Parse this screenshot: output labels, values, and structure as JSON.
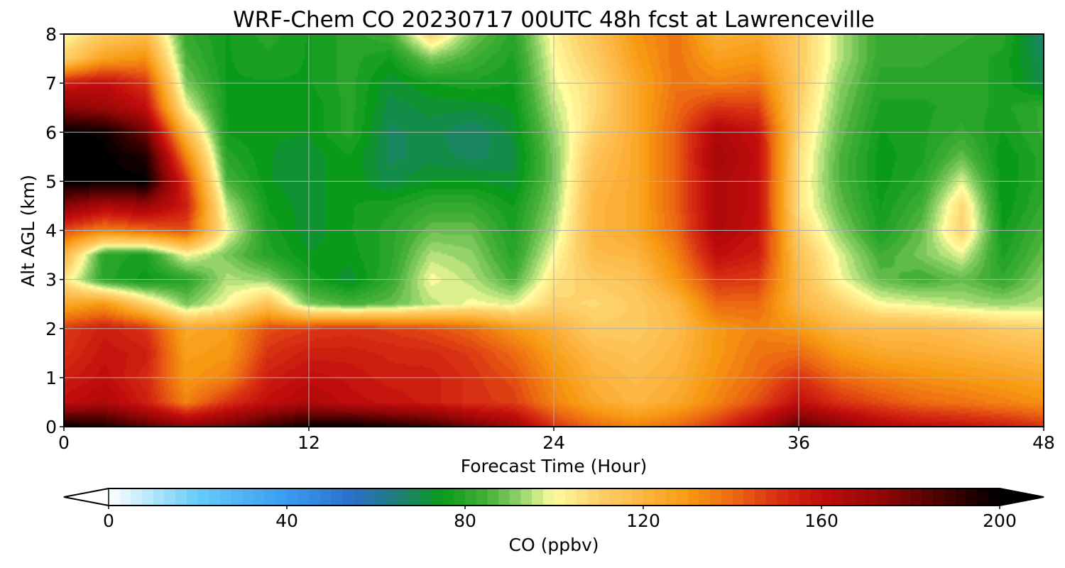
{
  "chart_data": {
    "type": "heatmap",
    "title": "WRF-Chem CO  20230717 00UTC 48h fcst at Lawrenceville",
    "xlabel": "Forecast Time (Hour)",
    "ylabel": "Alt AGL (km)",
    "xlim": [
      0,
      48
    ],
    "ylim": [
      0,
      8
    ],
    "x_ticks": [
      0,
      12,
      24,
      36,
      48
    ],
    "y_ticks": [
      0,
      1,
      2,
      3,
      4,
      5,
      6,
      7,
      8
    ],
    "grid": true,
    "x": [
      0,
      2,
      4,
      6,
      8,
      10,
      12,
      14,
      16,
      18,
      20,
      22,
      24,
      26,
      28,
      30,
      32,
      34,
      36,
      38,
      40,
      42,
      44,
      46,
      48
    ],
    "y": [
      0,
      0.5,
      1,
      1.5,
      2,
      2.5,
      3,
      3.5,
      4,
      4.5,
      5,
      5.5,
      6,
      6.5,
      7,
      7.5,
      8
    ],
    "z": [
      [
        200,
        195,
        185,
        175,
        180,
        190,
        198,
        200,
        195,
        190,
        180,
        170,
        150,
        140,
        135,
        140,
        150,
        165,
        185,
        175,
        165,
        160,
        158,
        155,
        150
      ],
      [
        160,
        165,
        155,
        135,
        150,
        160,
        165,
        160,
        158,
        155,
        150,
        148,
        135,
        125,
        120,
        125,
        135,
        145,
        160,
        150,
        145,
        140,
        138,
        135,
        132
      ],
      [
        155,
        160,
        152,
        130,
        135,
        155,
        160,
        158,
        155,
        155,
        150,
        145,
        132,
        122,
        118,
        122,
        132,
        140,
        150,
        140,
        135,
        132,
        130,
        128,
        125
      ],
      [
        150,
        158,
        155,
        128,
        130,
        150,
        155,
        155,
        153,
        152,
        148,
        140,
        128,
        118,
        115,
        120,
        130,
        138,
        140,
        130,
        125,
        124,
        122,
        120,
        118
      ],
      [
        148,
        155,
        150,
        125,
        128,
        145,
        148,
        150,
        148,
        145,
        140,
        130,
        122,
        112,
        112,
        118,
        130,
        135,
        130,
        120,
        118,
        118,
        116,
        112,
        110
      ],
      [
        125,
        130,
        110,
        90,
        100,
        115,
        90,
        85,
        88,
        95,
        100,
        98,
        110,
        108,
        112,
        120,
        140,
        140,
        120,
        110,
        100,
        98,
        95,
        93,
        95
      ],
      [
        105,
        80,
        75,
        80,
        95,
        92,
        78,
        72,
        82,
        100,
        95,
        85,
        105,
        112,
        115,
        130,
        150,
        148,
        118,
        100,
        88,
        84,
        88,
        82,
        92
      ],
      [
        120,
        80,
        78,
        100,
        90,
        80,
        74,
        75,
        80,
        95,
        92,
        80,
        100,
        118,
        120,
        135,
        160,
        155,
        115,
        98,
        84,
        90,
        98,
        78,
        88
      ],
      [
        145,
        135,
        140,
        145,
        100,
        78,
        72,
        76,
        80,
        88,
        88,
        78,
        95,
        120,
        125,
        140,
        165,
        158,
        110,
        92,
        78,
        88,
        110,
        76,
        85
      ],
      [
        175,
        165,
        170,
        155,
        95,
        76,
        72,
        76,
        78,
        82,
        82,
        76,
        92,
        120,
        125,
        142,
        165,
        160,
        105,
        88,
        76,
        84,
        108,
        74,
        82
      ],
      [
        200,
        200,
        200,
        150,
        85,
        74,
        72,
        76,
        70,
        74,
        74,
        72,
        90,
        118,
        125,
        142,
        165,
        160,
        105,
        86,
        75,
        80,
        98,
        74,
        80
      ],
      [
        200,
        200,
        195,
        135,
        80,
        74,
        72,
        76,
        68,
        70,
        68,
        70,
        90,
        115,
        125,
        142,
        168,
        160,
        106,
        86,
        75,
        78,
        88,
        74,
        80
      ],
      [
        200,
        198,
        180,
        118,
        76,
        74,
        74,
        80,
        68,
        70,
        66,
        72,
        92,
        110,
        125,
        142,
        165,
        158,
        108,
        88,
        76,
        78,
        82,
        76,
        82
      ],
      [
        175,
        170,
        160,
        100,
        76,
        74,
        74,
        80,
        70,
        72,
        72,
        74,
        95,
        108,
        125,
        140,
        150,
        148,
        110,
        90,
        78,
        78,
        80,
        78,
        82
      ],
      [
        155,
        160,
        150,
        90,
        76,
        76,
        76,
        80,
        72,
        76,
        78,
        76,
        98,
        108,
        125,
        138,
        135,
        138,
        112,
        92,
        80,
        80,
        80,
        78,
        70
      ],
      [
        110,
        128,
        132,
        85,
        76,
        78,
        76,
        80,
        76,
        90,
        84,
        78,
        100,
        112,
        128,
        138,
        128,
        130,
        112,
        95,
        82,
        82,
        80,
        78,
        68
      ],
      [
        100,
        112,
        118,
        82,
        76,
        80,
        76,
        80,
        84,
        110,
        90,
        80,
        102,
        115,
        130,
        138,
        122,
        125,
        112,
        95,
        82,
        84,
        82,
        80,
        66
      ]
    ],
    "colorbar": {
      "label": "CO  (ppbv)",
      "min": 0,
      "max": 200,
      "ticks": [
        0,
        40,
        80,
        120,
        160,
        200
      ],
      "extend": "both",
      "stops": [
        {
          "v": 0,
          "c": "#ffffff"
        },
        {
          "v": 20,
          "c": "#66ccf8"
        },
        {
          "v": 40,
          "c": "#3a9cf0"
        },
        {
          "v": 55,
          "c": "#2a6ec8"
        },
        {
          "v": 65,
          "c": "#1e7e78"
        },
        {
          "v": 75,
          "c": "#0a9a1a"
        },
        {
          "v": 85,
          "c": "#46b038"
        },
        {
          "v": 92,
          "c": "#8ed068"
        },
        {
          "v": 97,
          "c": "#d4ee8a"
        },
        {
          "v": 100,
          "c": "#fffb9e"
        },
        {
          "v": 110,
          "c": "#fdd06a"
        },
        {
          "v": 120,
          "c": "#fdb642"
        },
        {
          "v": 130,
          "c": "#f79a12"
        },
        {
          "v": 140,
          "c": "#ed6a12"
        },
        {
          "v": 150,
          "c": "#d83012"
        },
        {
          "v": 160,
          "c": "#c00c0c"
        },
        {
          "v": 175,
          "c": "#8a0606"
        },
        {
          "v": 190,
          "c": "#380000"
        },
        {
          "v": 200,
          "c": "#000000"
        }
      ]
    }
  }
}
